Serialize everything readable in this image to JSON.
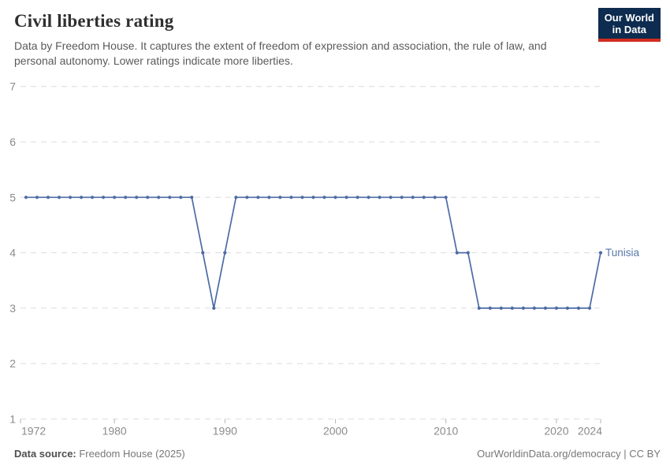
{
  "header": {
    "title": "Civil liberties rating",
    "subtitle_lines": [
      "Data by Freedom House. It captures the extent of freedom of expression and association, the rule of law, and",
      "personal autonomy. Lower ratings indicate more liberties."
    ],
    "logo": {
      "line1": "Our World",
      "line2": "in Data"
    }
  },
  "chart_data": {
    "type": "line",
    "title": "Civil liberties rating",
    "xlabel": "",
    "ylabel": "",
    "xlim": [
      1972,
      2024
    ],
    "ylim": [
      1,
      7
    ],
    "y_ticks": [
      1,
      2,
      3,
      4,
      5,
      6,
      7
    ],
    "x_ticks": [
      1972,
      1980,
      1990,
      2000,
      2010,
      2020,
      2024
    ],
    "grid": "horizontal-dashed",
    "legend_position": "end-of-line-label",
    "series": [
      {
        "name": "Tunisia",
        "color": "#4c6ba5",
        "x": [
          1972,
          1973,
          1974,
          1975,
          1976,
          1977,
          1978,
          1979,
          1980,
          1981,
          1982,
          1983,
          1984,
          1985,
          1986,
          1987,
          1988,
          1989,
          1990,
          1991,
          1992,
          1993,
          1994,
          1995,
          1996,
          1997,
          1998,
          1999,
          2000,
          2001,
          2002,
          2003,
          2004,
          2005,
          2006,
          2007,
          2008,
          2009,
          2010,
          2011,
          2012,
          2013,
          2014,
          2015,
          2016,
          2017,
          2018,
          2019,
          2020,
          2021,
          2022,
          2023,
          2024
        ],
        "values": [
          5,
          5,
          5,
          5,
          5,
          5,
          5,
          5,
          5,
          5,
          5,
          5,
          5,
          5,
          5,
          5,
          4,
          3,
          4,
          5,
          5,
          5,
          5,
          5,
          5,
          5,
          5,
          5,
          5,
          5,
          5,
          5,
          5,
          5,
          5,
          5,
          5,
          5,
          5,
          4,
          4,
          3,
          3,
          3,
          3,
          3,
          3,
          3,
          3,
          3,
          3,
          3,
          4
        ]
      }
    ]
  },
  "footer": {
    "source_label": "Data source:",
    "source_value": " Freedom House (2025)",
    "right_text": "OurWorldinData.org/democracy | CC BY"
  },
  "colors": {
    "line": "#4c6ba5",
    "series_label": "#5878a8",
    "logo_background": "#0d2c4f",
    "logo_accent": "#cf2d20",
    "gridline": "#dcdcdc",
    "axis_text": "#8b8b8b"
  }
}
